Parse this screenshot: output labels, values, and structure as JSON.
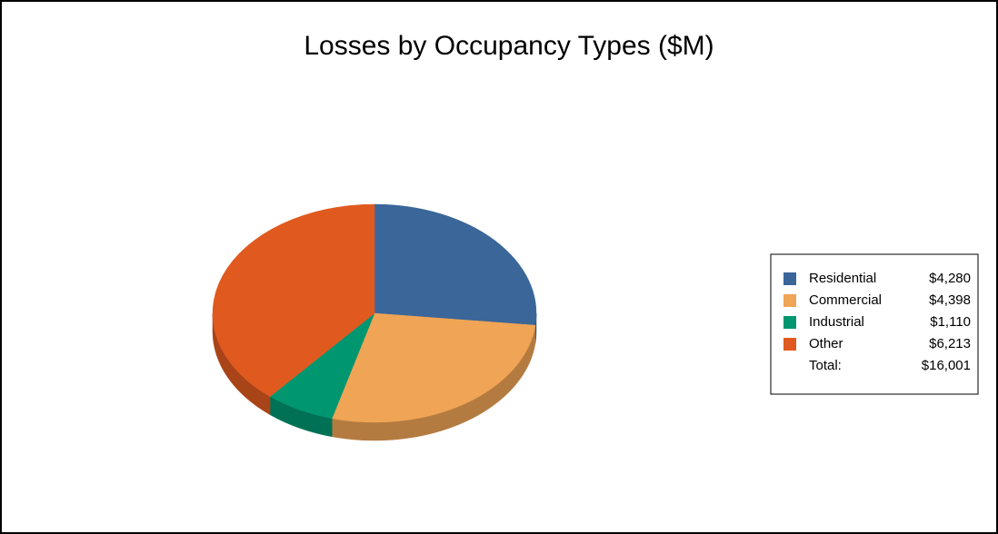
{
  "chart_data": {
    "type": "pie",
    "title": "Losses by Occupancy Types ($M)",
    "categories": [
      "Residential",
      "Commercial",
      "Industrial",
      "Other"
    ],
    "values": [
      4280,
      4398,
      1110,
      6213
    ],
    "value_labels": [
      "$4,280",
      "$4,398",
      "$1,110",
      "$6,213"
    ],
    "colors": [
      "#3a6699",
      "#f0a455",
      "#009670",
      "#e05a20"
    ],
    "total_label": "Total:",
    "total": 16001,
    "total_value_label": "$16,001",
    "legend": "right"
  }
}
